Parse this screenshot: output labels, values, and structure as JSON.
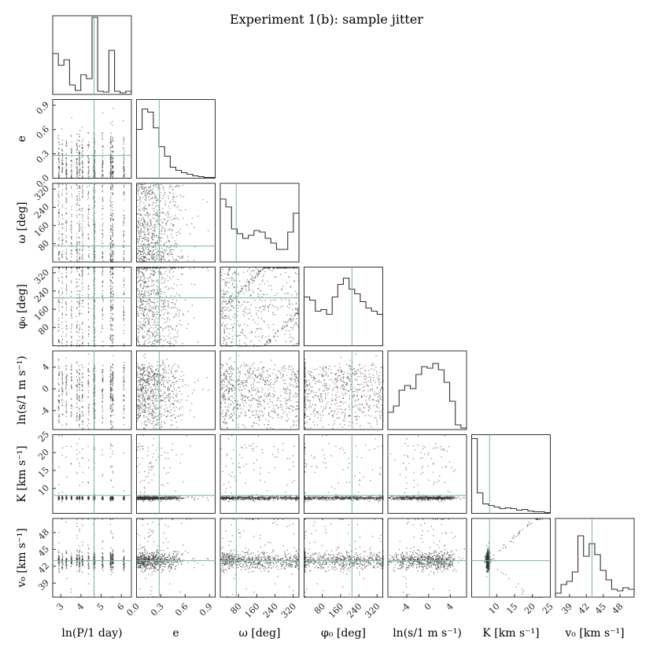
{
  "chart_data": {
    "type": "scatter",
    "subtype": "corner-plot",
    "title": "Experiment 1(b): sample jitter",
    "truth_line_color": "#7fb3a3",
    "frame_color": "#333333",
    "parameters": [
      {
        "key": "lnP",
        "label": "ln(P/1 day)",
        "range": [
          2.6,
          6.5
        ],
        "ticks": [
          "3",
          "4",
          "5",
          "6"
        ],
        "tickvals": [
          3,
          4,
          5,
          6
        ],
        "truth": 4.65,
        "hist": [
          0.52,
          0.37,
          0.44,
          0.12,
          0.05,
          0.25,
          0.2,
          0.98,
          0.04,
          0.03,
          0.56,
          0.04,
          0.02,
          0.04
        ]
      },
      {
        "key": "e",
        "label": "e",
        "range": [
          0,
          0.97
        ],
        "ticks": [
          "0.0",
          "0.3",
          "0.6",
          "0.9"
        ],
        "tickvals": [
          0.0,
          0.3,
          0.6,
          0.9
        ],
        "truth": 0.28,
        "hist": [
          0.62,
          0.88,
          0.84,
          0.64,
          0.4,
          0.28,
          0.14,
          0.1,
          0.07,
          0.05,
          0.03,
          0.02,
          0.01,
          0.01
        ]
      },
      {
        "key": "omega",
        "label": "ω [deg]",
        "range": [
          0,
          345
        ],
        "ticks": [
          "80",
          "160",
          "240",
          "320"
        ],
        "tickvals": [
          80,
          160,
          240,
          320
        ],
        "truth": 70,
        "hist": [
          0.8,
          0.7,
          0.42,
          0.36,
          0.3,
          0.34,
          0.4,
          0.38,
          0.3,
          0.24,
          0.16,
          0.16,
          0.38,
          0.62
        ]
      },
      {
        "key": "phi0",
        "label": "φ₀ [deg]",
        "range": [
          0,
          345
        ],
        "ticks": [
          "80",
          "160",
          "240",
          "320"
        ],
        "tickvals": [
          80,
          160,
          240,
          320
        ],
        "truth": 210,
        "hist": [
          0.62,
          0.58,
          0.44,
          0.46,
          0.4,
          0.62,
          0.78,
          0.86,
          0.72,
          0.66,
          0.56,
          0.48,
          0.44,
          0.4
        ]
      },
      {
        "key": "lns",
        "label": "ln(s/1 m s⁻¹)",
        "range": [
          -7.5,
          7
        ],
        "ticks": [
          "-4",
          "0",
          "4"
        ],
        "tickvals": [
          -4,
          0,
          4
        ],
        "truth": null,
        "hist": [
          0.22,
          0.3,
          0.5,
          0.56,
          0.52,
          0.7,
          0.8,
          0.78,
          0.84,
          0.76,
          0.6,
          0.36,
          0.06,
          0.02
        ]
      },
      {
        "key": "K",
        "label": "K [km s⁻¹]",
        "range": [
          3,
          25
        ],
        "ticks": [
          "10",
          "15",
          "20",
          "25"
        ],
        "tickvals": [
          10,
          15,
          20,
          25
        ],
        "truth": 8.0,
        "hist": [
          0.95,
          0.26,
          0.12,
          0.1,
          0.08,
          0.06,
          0.07,
          0.06,
          0.04,
          0.05,
          0.03,
          0.02,
          0.02,
          0.01
        ]
      },
      {
        "key": "v0",
        "label": "v₀ [km s⁻¹]",
        "range": [
          36.5,
          50.5
        ],
        "ticks": [
          "39",
          "42",
          "45",
          "48"
        ],
        "tickvals": [
          39,
          42,
          45,
          48
        ],
        "truth": 43.0,
        "hist": [
          0.05,
          0.16,
          0.2,
          0.32,
          0.78,
          0.52,
          0.68,
          0.54,
          0.34,
          0.22,
          0.1,
          0.08,
          0.12,
          0.1
        ]
      }
    ],
    "lnP_stripes": [
      2.88,
      3.05,
      3.25,
      3.5,
      3.78,
      3.9,
      4.05,
      4.35,
      4.63,
      5.05,
      5.45,
      5.55,
      6.1
    ]
  }
}
